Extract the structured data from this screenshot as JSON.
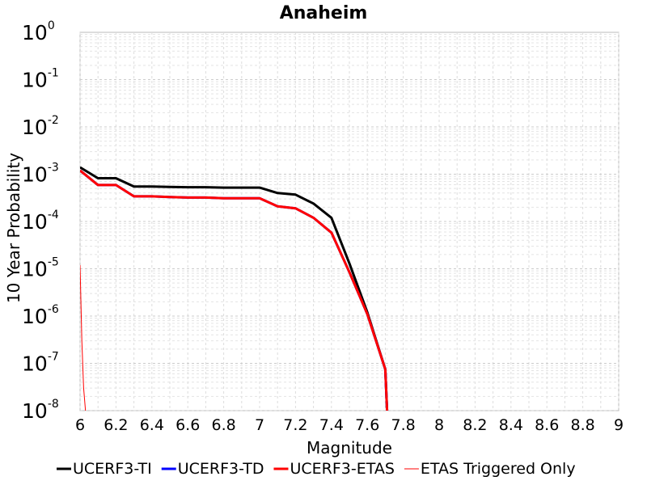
{
  "chart_data": {
    "type": "line",
    "title": "Anaheim",
    "xlabel": "Magnitude",
    "ylabel": "10 Year Probability",
    "xlim": [
      6,
      9
    ],
    "ylim": [
      1e-08,
      1
    ],
    "yscale": "log",
    "grid": true,
    "legend_position": "bottom",
    "x_ticks": [
      "6",
      "6.2",
      "6.4",
      "6.6",
      "6.8",
      "7",
      "7.2",
      "7.4",
      "7.6",
      "7.8",
      "8",
      "8.2",
      "8.4",
      "8.6",
      "8.8",
      "9"
    ],
    "y_ticks": [
      {
        "base": "10",
        "exp": "0"
      },
      {
        "base": "10",
        "exp": "-1"
      },
      {
        "base": "10",
        "exp": "-2"
      },
      {
        "base": "10",
        "exp": "-3"
      },
      {
        "base": "10",
        "exp": "-4"
      },
      {
        "base": "10",
        "exp": "-5"
      },
      {
        "base": "10",
        "exp": "-6"
      },
      {
        "base": "10",
        "exp": "-7"
      },
      {
        "base": "10",
        "exp": "-8"
      }
    ],
    "series": [
      {
        "name": "UCERF3-TI",
        "color": "#000000",
        "width": 3,
        "x": [
          6.0,
          6.1,
          6.2,
          6.3,
          6.4,
          6.5,
          6.6,
          6.7,
          6.8,
          6.9,
          7.0,
          7.1,
          7.2,
          7.3,
          7.4,
          7.5,
          7.6,
          7.7,
          7.71
        ],
        "y": [
          0.0014,
          0.00082,
          0.00082,
          0.00055,
          0.00055,
          0.00054,
          0.00053,
          0.00053,
          0.00052,
          0.00052,
          0.00052,
          0.0004,
          0.00037,
          0.00024,
          0.00012,
          1.3e-05,
          1.2e-06,
          7.5e-08,
          1e-08
        ]
      },
      {
        "name": "UCERF3-TD",
        "color": "#0000ff",
        "width": 3,
        "x": [
          6.0,
          6.1,
          6.2,
          6.3,
          6.4,
          6.5,
          6.6,
          6.7,
          6.8,
          6.9,
          7.0,
          7.1,
          7.2,
          7.3,
          7.4,
          7.5,
          7.6,
          7.7,
          7.71
        ],
        "y": [
          0.0012,
          0.00059,
          0.00059,
          0.00034,
          0.00034,
          0.00033,
          0.00032,
          0.00032,
          0.00031,
          0.00031,
          0.00031,
          0.00021,
          0.00019,
          0.00012,
          5.8e-05,
          8.5e-06,
          1.1e-06,
          7.5e-08,
          1e-08
        ]
      },
      {
        "name": "UCERF3-ETAS",
        "color": "#ff0000",
        "width": 3,
        "x": [
          6.0,
          6.1,
          6.2,
          6.3,
          6.4,
          6.5,
          6.6,
          6.7,
          6.8,
          6.9,
          7.0,
          7.1,
          7.2,
          7.3,
          7.4,
          7.5,
          7.6,
          7.7,
          7.71
        ],
        "y": [
          0.0012,
          0.00059,
          0.00059,
          0.00034,
          0.00034,
          0.00033,
          0.00032,
          0.00032,
          0.00031,
          0.00031,
          0.00031,
          0.00021,
          0.00019,
          0.00012,
          5.8e-05,
          8.5e-06,
          1.1e-06,
          7.5e-08,
          1e-08
        ]
      },
      {
        "name": "ETAS Triggered Only",
        "color": "#ff0000",
        "width": 1,
        "x": [
          6.0,
          6.01,
          6.02,
          6.03
        ],
        "y": [
          1.2e-05,
          3e-07,
          3e-08,
          1e-08
        ]
      }
    ]
  }
}
